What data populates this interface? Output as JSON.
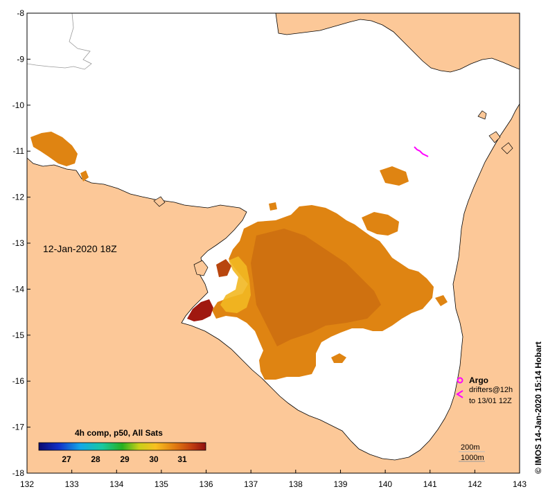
{
  "map": {
    "date_label": "12-Jan-2020 18Z",
    "credit": "© IMOS 14-Jan-2020 15:14 Hobart",
    "colorbar": {
      "title": "4h comp, p50, All Sats",
      "ticks": [
        "27",
        "28",
        "29",
        "30",
        "31"
      ]
    },
    "legend": {
      "argo": "Argo",
      "drifters_line1": "drifters@12h",
      "drifters_line2": "to 13/01 12Z",
      "contour_200": "200m",
      "contour_1000": "1000m"
    },
    "x_ticks": [
      "132",
      "133",
      "134",
      "135",
      "136",
      "137",
      "138",
      "139",
      "140",
      "141",
      "142",
      "143"
    ],
    "y_ticks": [
      "-8",
      "-9",
      "-10",
      "-11",
      "-12",
      "-13",
      "-14",
      "-15",
      "-16",
      "-17",
      "-18"
    ],
    "colors": {
      "land": "#fcc898",
      "ocean": "#ffffff",
      "sst_orange": "#df8412",
      "sst_dark": "#b8460e",
      "sst_red": "#a01810",
      "sst_yellow": "#f2b822",
      "argo_magenta": "#ff00ff"
    }
  }
}
